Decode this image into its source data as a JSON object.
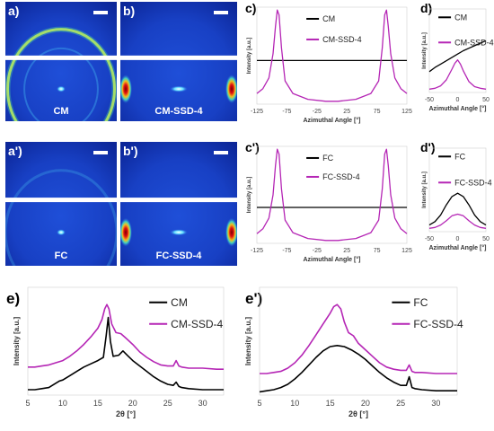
{
  "colors": {
    "black_series": "#000000",
    "magenta_series": "#b526b5"
  },
  "saxs_images": [
    {
      "panel_label": "a)",
      "name": "saxs-image-cm",
      "caption": "CM",
      "pattern": "ring"
    },
    {
      "panel_label": "b)",
      "name": "saxs-image-cm-ssd4",
      "caption": "CM-SSD-4",
      "pattern": "aligned"
    },
    {
      "panel_label": "a')",
      "name": "saxs-image-fc",
      "caption": "FC",
      "pattern": "faint"
    },
    {
      "panel_label": "b')",
      "name": "saxs-image-fc-ssd4",
      "caption": "FC-SSD-4",
      "pattern": "aligned"
    }
  ],
  "chart_data": [
    {
      "panel_label": "c)",
      "type": "line",
      "name": "azimuthal-cm",
      "xlabel": "Azimuthal Angle [°]",
      "ylabel": "Intensity [a.u.]",
      "xlim": [
        -125,
        125
      ],
      "ylim": [
        0,
        1
      ],
      "xticks": [
        "-125",
        "-75",
        "-25",
        "25",
        "75",
        "125"
      ],
      "legend_position": "top-right",
      "series": [
        {
          "name": "CM",
          "color": "black",
          "x": [
            -125,
            0,
            125
          ],
          "y": [
            0.45,
            0.45,
            0.45
          ]
        },
        {
          "name": "CM-SSD-4",
          "color": "magenta",
          "x": [
            -125,
            -115,
            -105,
            -98,
            -94,
            -91,
            -88,
            -84,
            -78,
            -65,
            -40,
            -10,
            10,
            40,
            65,
            78,
            84,
            88,
            91,
            94,
            98,
            105,
            115,
            125
          ],
          "y": [
            0.11,
            0.16,
            0.27,
            0.52,
            0.8,
            0.97,
            0.92,
            0.58,
            0.24,
            0.11,
            0.05,
            0.03,
            0.03,
            0.05,
            0.11,
            0.24,
            0.58,
            0.92,
            0.97,
            0.8,
            0.52,
            0.27,
            0.16,
            0.11
          ]
        }
      ]
    },
    {
      "panel_label": "d)",
      "type": "line",
      "name": "radial-cm",
      "xlabel": "Azimuthal Angle [°]",
      "ylabel": "Intensity [a.u.]",
      "xlim": [
        -50,
        50
      ],
      "ylim": [
        0,
        1
      ],
      "xticks": [
        "-50",
        "0",
        "50"
      ],
      "legend_position": "top-right",
      "series": [
        {
          "name": "CM",
          "color": "black",
          "x": [
            -50,
            -40,
            -30,
            -20,
            -10,
            0,
            10,
            20,
            30,
            40,
            50
          ],
          "y": [
            0.25,
            0.3,
            0.34,
            0.38,
            0.42,
            0.46,
            0.5,
            0.53,
            0.56,
            0.59,
            0.62
          ]
        },
        {
          "name": "CM-SSD-4",
          "color": "magenta",
          "x": [
            -50,
            -40,
            -30,
            -20,
            -10,
            -5,
            0,
            5,
            10,
            20,
            30,
            40,
            50
          ],
          "y": [
            0.04,
            0.05,
            0.08,
            0.15,
            0.28,
            0.35,
            0.39,
            0.34,
            0.26,
            0.13,
            0.07,
            0.05,
            0.04
          ]
        }
      ]
    },
    {
      "panel_label": "c')",
      "type": "line",
      "name": "azimuthal-fc",
      "xlabel": "Azimuthal Angle [°]",
      "ylabel": "Intensity [a.u.]",
      "xlim": [
        -125,
        125
      ],
      "ylim": [
        0,
        1
      ],
      "xticks": [
        "-125",
        "-75",
        "-25",
        "25",
        "75",
        "125"
      ],
      "legend_position": "top-right",
      "series": [
        {
          "name": "FC",
          "color": "black",
          "x": [
            -125,
            0,
            125
          ],
          "y": [
            0.37,
            0.37,
            0.37
          ]
        },
        {
          "name": "FC-SSD-4",
          "color": "magenta",
          "x": [
            -125,
            -115,
            -105,
            -98,
            -94,
            -91,
            -88,
            -84,
            -78,
            -65,
            -40,
            -10,
            10,
            40,
            65,
            78,
            84,
            88,
            91,
            94,
            98,
            105,
            115,
            125
          ],
          "y": [
            0.1,
            0.15,
            0.26,
            0.5,
            0.8,
            0.97,
            0.92,
            0.56,
            0.24,
            0.11,
            0.05,
            0.03,
            0.03,
            0.05,
            0.11,
            0.24,
            0.56,
            0.92,
            0.97,
            0.8,
            0.5,
            0.26,
            0.15,
            0.1
          ]
        }
      ]
    },
    {
      "panel_label": "d')",
      "type": "line",
      "name": "radial-fc",
      "xlabel": "Azimuthal Angle [°]",
      "ylabel": "Intensity [a.u.]",
      "xlim": [
        -50,
        50
      ],
      "ylim": [
        0,
        1
      ],
      "xticks": [
        "-50",
        "0",
        "50"
      ],
      "legend_position": "top-right",
      "series": [
        {
          "name": "FC",
          "color": "black",
          "x": [
            -50,
            -40,
            -30,
            -20,
            -10,
            0,
            10,
            20,
            30,
            40,
            50
          ],
          "y": [
            0.08,
            0.12,
            0.2,
            0.32,
            0.42,
            0.46,
            0.42,
            0.32,
            0.2,
            0.12,
            0.08
          ]
        },
        {
          "name": "FC-SSD-4",
          "color": "magenta",
          "x": [
            -50,
            -40,
            -30,
            -20,
            -10,
            0,
            10,
            20,
            30,
            40,
            50
          ],
          "y": [
            0.04,
            0.05,
            0.08,
            0.13,
            0.19,
            0.21,
            0.19,
            0.13,
            0.08,
            0.05,
            0.04
          ]
        }
      ]
    },
    {
      "panel_label": "e)",
      "type": "line",
      "name": "waxs-cm",
      "xlabel": "2θ [°]",
      "ylabel": "Intensity [a.u.]",
      "xlim": [
        5,
        33
      ],
      "ylim": [
        0,
        1
      ],
      "xticks": [
        "5",
        "10",
        "15",
        "20",
        "25",
        "30"
      ],
      "legend_position": "top-right",
      "series": [
        {
          "name": "CM",
          "color": "black",
          "x": [
            5,
            6,
            7,
            8,
            9,
            9.5,
            10,
            11,
            12,
            13,
            14,
            15,
            15.8,
            16.2,
            16.5,
            16.8,
            17.2,
            18,
            18.6,
            19.2,
            20,
            21,
            22,
            23,
            24,
            25,
            25.8,
            26.2,
            26.6,
            27,
            28,
            30,
            32,
            33
          ],
          "y": [
            0.05,
            0.05,
            0.06,
            0.07,
            0.11,
            0.13,
            0.14,
            0.18,
            0.22,
            0.26,
            0.29,
            0.32,
            0.35,
            0.55,
            0.72,
            0.5,
            0.36,
            0.37,
            0.41,
            0.37,
            0.32,
            0.27,
            0.22,
            0.17,
            0.13,
            0.1,
            0.09,
            0.12,
            0.08,
            0.07,
            0.06,
            0.05,
            0.05,
            0.05
          ]
        },
        {
          "name": "CM-SSD-4",
          "color": "magenta",
          "x": [
            5,
            6,
            7,
            8,
            9,
            10,
            11,
            12,
            13,
            14,
            15,
            15.6,
            16,
            16.3,
            16.6,
            17,
            17.6,
            18.3,
            19,
            20,
            21,
            22,
            23,
            24,
            25,
            25.8,
            26.2,
            26.6,
            27,
            28,
            30,
            32,
            33
          ],
          "y": [
            0.26,
            0.26,
            0.27,
            0.28,
            0.3,
            0.32,
            0.36,
            0.41,
            0.47,
            0.54,
            0.62,
            0.7,
            0.8,
            0.84,
            0.8,
            0.66,
            0.58,
            0.57,
            0.53,
            0.47,
            0.4,
            0.35,
            0.31,
            0.28,
            0.27,
            0.27,
            0.32,
            0.27,
            0.26,
            0.25,
            0.25,
            0.24,
            0.24
          ]
        }
      ]
    },
    {
      "panel_label": "e')",
      "type": "line",
      "name": "waxs-fc",
      "xlabel": "2θ [°]",
      "ylabel": "Intensity [a.u.]",
      "xlim": [
        5,
        33
      ],
      "ylim": [
        0,
        1
      ],
      "xticks": [
        "5",
        "10",
        "15",
        "20",
        "25",
        "30"
      ],
      "legend_position": "top-right",
      "series": [
        {
          "name": "FC",
          "color": "black",
          "x": [
            5,
            6,
            7,
            8,
            9,
            10,
            11,
            12,
            13,
            14,
            15,
            16,
            17,
            18,
            19,
            20,
            21,
            22,
            23,
            24,
            25,
            25.8,
            26.2,
            26.6,
            27,
            28,
            30,
            32,
            33
          ],
          "y": [
            0.03,
            0.04,
            0.05,
            0.07,
            0.1,
            0.15,
            0.21,
            0.28,
            0.35,
            0.41,
            0.45,
            0.46,
            0.45,
            0.42,
            0.38,
            0.33,
            0.27,
            0.21,
            0.16,
            0.12,
            0.09,
            0.09,
            0.17,
            0.07,
            0.06,
            0.05,
            0.04,
            0.04,
            0.04
          ]
        },
        {
          "name": "FC-SSD-4",
          "color": "magenta",
          "x": [
            5,
            6,
            7,
            8,
            9,
            10,
            11,
            12,
            13,
            14,
            15,
            15.5,
            16,
            16.5,
            17,
            17.6,
            18.3,
            19,
            20,
            21,
            22,
            23,
            24,
            25,
            25.8,
            26.2,
            26.6,
            27,
            28,
            30,
            32,
            33
          ],
          "y": [
            0.2,
            0.2,
            0.21,
            0.22,
            0.25,
            0.3,
            0.37,
            0.46,
            0.56,
            0.66,
            0.76,
            0.82,
            0.84,
            0.8,
            0.68,
            0.58,
            0.55,
            0.48,
            0.42,
            0.36,
            0.3,
            0.26,
            0.24,
            0.23,
            0.23,
            0.28,
            0.22,
            0.21,
            0.21,
            0.2,
            0.2,
            0.2
          ]
        }
      ]
    }
  ]
}
